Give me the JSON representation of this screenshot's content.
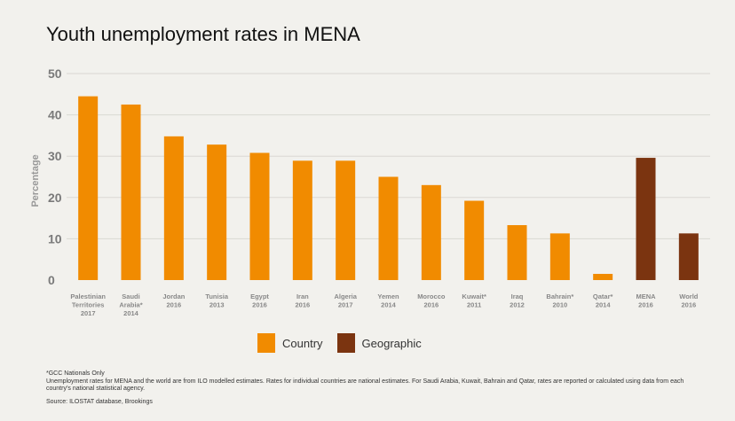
{
  "chart_data": {
    "type": "bar",
    "title": "Youth unemployment rates in MENA",
    "ylabel": "Percentage",
    "xlabel": "",
    "ylim": [
      0,
      50
    ],
    "yticks": [
      0,
      10,
      20,
      30,
      40,
      50
    ],
    "grid": true,
    "categories": [
      [
        "Palestinian",
        "Territories",
        "2017"
      ],
      [
        "Saudi",
        "Arabia*",
        "2014"
      ],
      [
        "Jordan",
        "2016"
      ],
      [
        "Tunisia",
        "2013"
      ],
      [
        "Egypt",
        "2016"
      ],
      [
        "Iran",
        "2016"
      ],
      [
        "Algeria",
        "2017"
      ],
      [
        "Yemen",
        "2014"
      ],
      [
        "Morocco",
        "2016"
      ],
      [
        "Kuwait*",
        "2011"
      ],
      [
        "Iraq",
        "2012"
      ],
      [
        "Bahrain*",
        "2010"
      ],
      [
        "Qatar*",
        "2014"
      ],
      [
        "MENA",
        "2016"
      ],
      [
        "World",
        "2016"
      ]
    ],
    "values": [
      44.5,
      42.5,
      34.8,
      32.8,
      30.8,
      28.9,
      28.9,
      25.0,
      23.0,
      19.2,
      13.3,
      11.3,
      1.5,
      29.6,
      11.3
    ],
    "groups": [
      "Country",
      "Country",
      "Country",
      "Country",
      "Country",
      "Country",
      "Country",
      "Country",
      "Country",
      "Country",
      "Country",
      "Country",
      "Country",
      "Geographic",
      "Geographic"
    ],
    "legend": {
      "placement": "bottom",
      "entries": [
        {
          "name": "Country",
          "color": "#f18b00"
        },
        {
          "name": "Geographic",
          "color": "#7b3410"
        }
      ]
    }
  },
  "notes": {
    "line1": "*GCC Nationals Only",
    "line2": "Unemployment rates for MENA and the world are from ILO modelled estimates. Rates for individual countries are national estimates. For Saudi Arabia, Kuwait, Bahrain and Qatar, rates are reported or calculated using data from each country’s national statistical agency.",
    "source": "Source: ILOSTAT database, Brookings"
  }
}
